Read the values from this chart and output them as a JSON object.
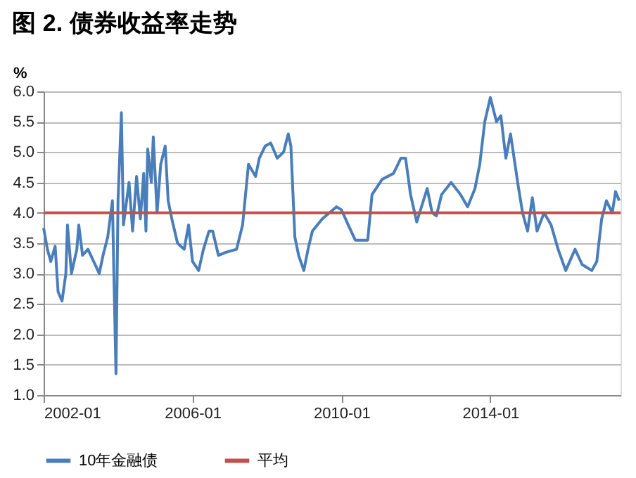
{
  "chart_data": {
    "type": "line",
    "title": "图 2. 债券收益率走势",
    "ylabel": "%",
    "x": [
      "2002-01-01",
      "2002-02-07",
      "2002-03-12",
      "2002-04-24",
      "2002-05-23",
      "2002-07-01",
      "2002-08-07",
      "2002-08-23",
      "2002-10-01",
      "2002-11-23",
      "2002-12-12",
      "2003-01-18",
      "2003-03-12",
      "2003-05-07",
      "2003-07-01",
      "2003-08-07",
      "2003-09-22",
      "2003-11-07",
      "2003-11-23",
      "2003-12-12",
      "2004-01-01",
      "2004-02-03",
      "2004-02-23",
      "2004-04-18",
      "2004-05-23",
      "2004-07-01",
      "2004-08-07",
      "2004-09-09",
      "2004-10-01",
      "2004-10-18",
      "2004-11-23",
      "2004-12-12",
      "2005-01-18",
      "2005-02-23",
      "2005-04-08",
      "2005-05-07",
      "2005-06-12",
      "2005-08-07",
      "2005-10-11",
      "2005-11-23",
      "2006-01-01",
      "2006-03-02",
      "2006-04-18",
      "2006-06-12",
      "2006-07-18",
      "2006-09-12",
      "2006-11-23",
      "2007-03-09",
      "2007-05-07",
      "2007-07-04",
      "2007-08-07",
      "2007-09-12",
      "2007-10-18",
      "2007-12-15",
      "2008-02-07",
      "2008-04-11",
      "2008-06-12",
      "2008-07-28",
      "2008-08-23",
      "2008-10-01",
      "2008-11-07",
      "2008-12-28",
      "2009-02-07",
      "2009-03-22",
      "2009-06-26",
      "2009-11-13",
      "2010-01-01",
      "2010-03-09",
      "2010-05-17",
      "2010-09-16",
      "2010-10-28",
      "2011-02-03",
      "2011-05-27",
      "2011-08-07",
      "2011-09-22",
      "2011-11-10",
      "2012-01-10",
      "2012-04-21",
      "2012-06-09",
      "2012-07-21",
      "2012-09-09",
      "2012-12-12",
      "2013-03-15",
      "2013-05-23",
      "2013-08-03",
      "2013-09-19",
      "2013-11-07",
      "2014-01-01",
      "2014-03-02",
      "2014-04-14",
      "2014-06-02",
      "2014-07-18",
      "2014-09-26",
      "2014-11-13",
      "2015-01-01",
      "2015-02-17",
      "2015-04-04",
      "2015-06-12",
      "2015-08-20",
      "2015-10-28",
      "2016-01-10",
      "2016-04-11",
      "2016-06-19",
      "2016-09-22",
      "2016-11-10",
      "2016-12-28",
      "2017-02-13",
      "2017-04-11",
      "2017-05-13",
      "2017-06-19"
    ],
    "series": [
      {
        "name": "10年金融债",
        "color": "#4a7ebb",
        "values": [
          3.75,
          3.4,
          3.2,
          3.45,
          2.7,
          2.55,
          3.0,
          3.8,
          3.0,
          3.4,
          3.8,
          3.3,
          3.4,
          3.2,
          3.0,
          3.3,
          3.6,
          4.2,
          2.85,
          1.35,
          4.2,
          5.65,
          3.8,
          4.5,
          3.7,
          4.6,
          3.9,
          4.65,
          3.7,
          5.05,
          4.5,
          5.25,
          4.0,
          4.8,
          5.1,
          4.2,
          3.9,
          3.5,
          3.4,
          3.8,
          3.2,
          3.05,
          3.4,
          3.7,
          3.7,
          3.3,
          3.35,
          3.4,
          3.8,
          4.8,
          4.7,
          4.6,
          4.9,
          5.1,
          5.15,
          4.9,
          5.0,
          5.3,
          5.1,
          3.6,
          3.3,
          3.05,
          3.4,
          3.7,
          3.9,
          4.1,
          4.05,
          3.8,
          3.55,
          3.55,
          4.3,
          4.55,
          4.65,
          4.9,
          4.9,
          4.3,
          3.85,
          4.4,
          4.0,
          3.95,
          4.3,
          4.5,
          4.3,
          4.1,
          4.4,
          4.8,
          5.5,
          5.9,
          5.5,
          5.6,
          4.9,
          5.3,
          4.5,
          4.0,
          3.7,
          4.25,
          3.7,
          4.0,
          3.8,
          3.4,
          3.05,
          3.4,
          3.15,
          3.05,
          3.2,
          3.9,
          4.2,
          4.0,
          4.35,
          4.2
        ]
      }
    ],
    "ref_lines": [
      {
        "axis": "y",
        "value": 4.0,
        "label": "平均",
        "color": "#c0504d"
      }
    ],
    "xlim": [
      "2002-01-01",
      "2017-07-01"
    ],
    "xticks": [
      {
        "value": "2002-01-01",
        "label": "2002-01"
      },
      {
        "value": "2006-01-01",
        "label": "2006-01"
      },
      {
        "value": "2010-01-01",
        "label": "2010-01"
      },
      {
        "value": "2014-01-01",
        "label": "2014-01"
      }
    ],
    "ylim": [
      1.0,
      6.0
    ],
    "yticks": [
      {
        "value": 1.0,
        "label": "1.0"
      },
      {
        "value": 1.5,
        "label": "1.5"
      },
      {
        "value": 2.0,
        "label": "2.0"
      },
      {
        "value": 2.5,
        "label": "2.5"
      },
      {
        "value": 3.0,
        "label": "3.0"
      },
      {
        "value": 3.5,
        "label": "3.5"
      },
      {
        "value": 4.0,
        "label": "4.0"
      },
      {
        "value": 4.5,
        "label": "4.5"
      },
      {
        "value": 5.0,
        "label": "5.0"
      },
      {
        "value": 5.5,
        "label": "5.5"
      },
      {
        "value": 6.0,
        "label": "6.0"
      }
    ],
    "grid": "y",
    "legend": "bottom",
    "marker": "none",
    "line_style": "solid"
  }
}
